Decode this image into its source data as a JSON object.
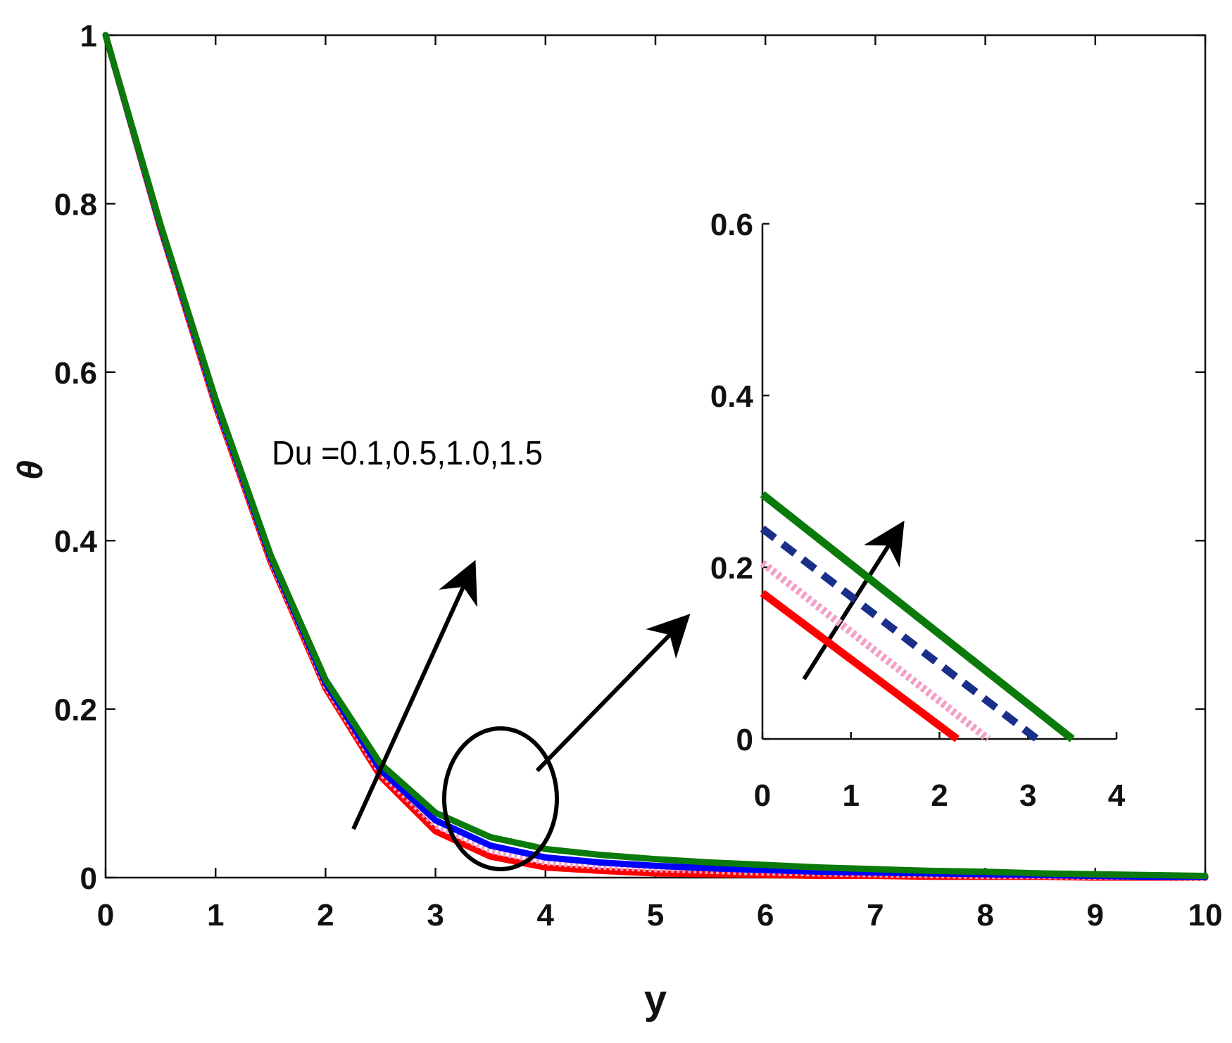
{
  "chart_data": [
    {
      "type": "line",
      "xlabel": "y",
      "ylabel": "θ",
      "xlim": [
        0,
        10
      ],
      "ylim": [
        0,
        1
      ],
      "xticks": [
        0,
        1,
        2,
        3,
        4,
        5,
        6,
        7,
        8,
        9,
        10
      ],
      "yticks": [
        0,
        0.2,
        0.4,
        0.6,
        0.8,
        1
      ],
      "xtick_labels": [
        "0",
        "1",
        "2",
        "3",
        "4",
        "5",
        "6",
        "7",
        "8",
        "9",
        "10"
      ],
      "ytick_labels": [
        "0",
        "0.2",
        "0.4",
        "0.6",
        "0.8",
        "1"
      ],
      "grid": false,
      "annotation": "Du =0.1,0.5,1.0,1.5",
      "x": [
        0,
        0.5,
        1,
        1.5,
        2,
        2.5,
        3,
        3.5,
        4,
        4.5,
        5,
        5.5,
        6,
        6.5,
        7,
        7.5,
        8,
        8.5,
        9,
        9.5,
        10
      ],
      "series": [
        {
          "color": "#ff0000",
          "style": "solid",
          "values": [
            1,
            0.77,
            0.56,
            0.375,
            0.225,
            0.12,
            0.055,
            0.025,
            0.012,
            0.008,
            0.005,
            0.004,
            0.003,
            0.002,
            0.002,
            0.001,
            0.001,
            0.001,
            0.0,
            0.0,
            0.0
          ]
        },
        {
          "color": "#f4a0c8",
          "style": "dotted",
          "values": [
            1,
            0.772,
            0.563,
            0.378,
            0.228,
            0.124,
            0.062,
            0.032,
            0.018,
            0.013,
            0.01,
            0.008,
            0.006,
            0.005,
            0.004,
            0.003,
            0.002,
            0.002,
            0.001,
            0.001,
            0.0
          ]
        },
        {
          "color": "#0000ff",
          "style": "solid",
          "values": [
            1,
            0.773,
            0.565,
            0.38,
            0.231,
            0.128,
            0.068,
            0.038,
            0.024,
            0.018,
            0.014,
            0.011,
            0.009,
            0.007,
            0.006,
            0.005,
            0.004,
            0.003,
            0.002,
            0.001,
            0.001
          ]
        },
        {
          "color": "#0a7a0a",
          "style": "solid",
          "values": [
            1,
            0.775,
            0.568,
            0.383,
            0.235,
            0.135,
            0.077,
            0.048,
            0.034,
            0.027,
            0.022,
            0.018,
            0.015,
            0.012,
            0.01,
            0.008,
            0.007,
            0.005,
            0.004,
            0.003,
            0.002
          ]
        }
      ]
    },
    {
      "type": "line",
      "xlim": [
        0,
        4
      ],
      "ylim": [
        0,
        0.6
      ],
      "xticks": [
        0,
        1,
        2,
        3,
        4
      ],
      "yticks": [
        0,
        0.2,
        0.4,
        0.6
      ],
      "xtick_labels": [
        "0",
        "1",
        "2",
        "3",
        "4"
      ],
      "ytick_labels": [
        "0",
        "0.2",
        "0.4",
        "0.6"
      ],
      "grid": false,
      "series": [
        {
          "color": "#ff0000",
          "style": "solid",
          "x": [
            0,
            2.2
          ],
          "values": [
            0.17,
            0.0
          ]
        },
        {
          "color": "#f4a0c8",
          "style": "dotted",
          "x": [
            0,
            2.55
          ],
          "values": [
            0.205,
            0.0
          ]
        },
        {
          "color": "#1a2f8a",
          "style": "dashed",
          "x": [
            0,
            3.1
          ],
          "values": [
            0.245,
            0.0
          ]
        },
        {
          "color": "#0a7a0a",
          "style": "solid",
          "x": [
            0,
            3.5
          ],
          "values": [
            0.285,
            0.0
          ]
        }
      ]
    }
  ]
}
